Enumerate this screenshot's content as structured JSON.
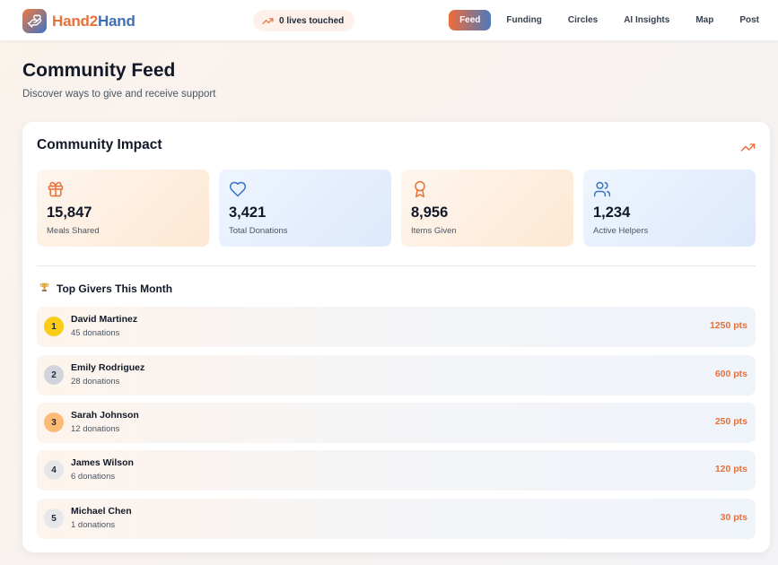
{
  "brand": {
    "name_part1": "Hand2",
    "name_part2": "Hand"
  },
  "header_pill": {
    "text": "0 lives touched"
  },
  "nav": [
    {
      "label": "Feed",
      "active": true
    },
    {
      "label": "Funding",
      "active": false
    },
    {
      "label": "Circles",
      "active": false
    },
    {
      "label": "AI Insights",
      "active": false
    },
    {
      "label": "Map",
      "active": false
    },
    {
      "label": "Post",
      "active": false
    }
  ],
  "page": {
    "title": "Community Feed",
    "subtitle": "Discover ways to give and receive support"
  },
  "impact": {
    "title": "Community Impact",
    "stats": [
      {
        "icon": "gift-icon",
        "value": "15,847",
        "label": "Meals Shared",
        "tone": "warm"
      },
      {
        "icon": "heart-icon",
        "value": "3,421",
        "label": "Total Donations",
        "tone": "cool"
      },
      {
        "icon": "award-icon",
        "value": "8,956",
        "label": "Items Given",
        "tone": "warm"
      },
      {
        "icon": "users-icon",
        "value": "1,234",
        "label": "Active Helpers",
        "tone": "cool"
      }
    ]
  },
  "top_givers": {
    "title": "Top Givers This Month",
    "items": [
      {
        "rank": "1",
        "name": "David Martinez",
        "donations": "45 donations",
        "points": "1250 pts",
        "badge_color": "#facc15"
      },
      {
        "rank": "2",
        "name": "Emily Rodriguez",
        "donations": "28 donations",
        "points": "600 pts",
        "badge_color": "#d1d5db"
      },
      {
        "rank": "3",
        "name": "Sarah Johnson",
        "donations": "12 donations",
        "points": "250 pts",
        "badge_color": "#fdba74"
      },
      {
        "rank": "4",
        "name": "James Wilson",
        "donations": "6 donations",
        "points": "120 pts",
        "badge_color": "#e5e7eb"
      },
      {
        "rank": "5",
        "name": "Michael Chen",
        "donations": "1 donations",
        "points": "30 pts",
        "badge_color": "#e5e7eb"
      }
    ]
  },
  "colors": {
    "accent_orange": "#e8703a",
    "accent_blue": "#3f6fb3"
  }
}
